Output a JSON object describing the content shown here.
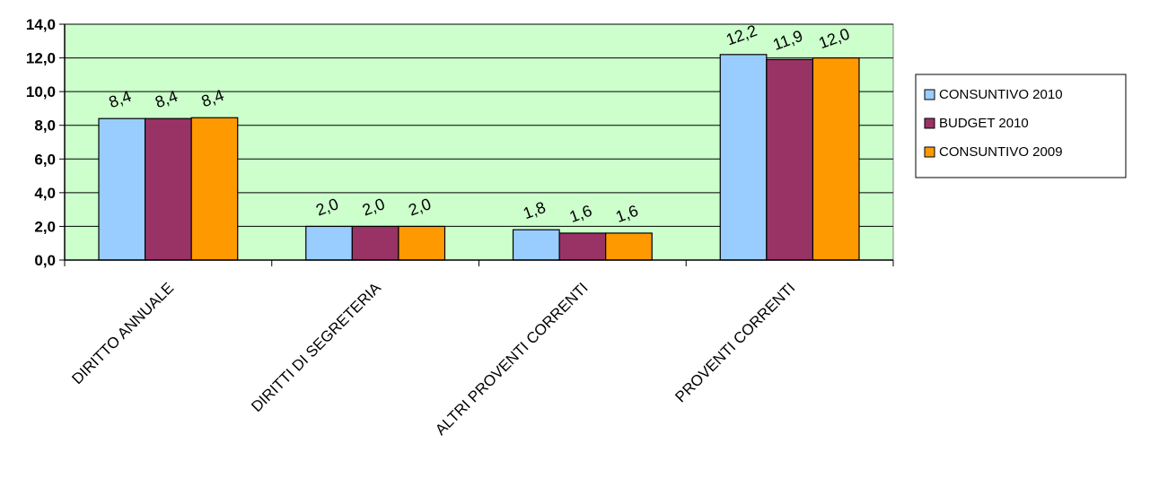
{
  "chart_data": {
    "type": "bar",
    "title": "",
    "xlabel": "",
    "ylabel": "",
    "ylim": [
      0,
      14
    ],
    "y_ticks": [
      "0,0",
      "2,0",
      "4,0",
      "6,0",
      "8,0",
      "10,0",
      "12,0",
      "14,0"
    ],
    "grid": "horizontal",
    "plot_background": "#ccffcc",
    "legend_position": "right",
    "categories": [
      "DIRITTO ANNUALE",
      "DIRITTI DI SEGRETERIA",
      "ALTRI PROVENTI CORRENTI",
      "PROVENTI CORRENTI"
    ],
    "series": [
      {
        "name": "CONSUNTIVO 2010",
        "color": "#99ccff",
        "values": [
          8.4,
          2.0,
          1.8,
          12.2
        ],
        "labels": [
          "8,4",
          "2,0",
          "1,8",
          "12,2"
        ]
      },
      {
        "name": "BUDGET 2010",
        "color": "#993366",
        "values": [
          8.4,
          2.0,
          1.6,
          11.9
        ],
        "labels": [
          "8,4",
          "2,0",
          "1,6",
          "11,9"
        ]
      },
      {
        "name": "CONSUNTIVO 2009",
        "color": "#ff9900",
        "values": [
          8.45,
          2.0,
          1.6,
          12.0
        ],
        "labels": [
          "8,4",
          "2,0",
          "1,6",
          "12,0"
        ]
      }
    ]
  }
}
